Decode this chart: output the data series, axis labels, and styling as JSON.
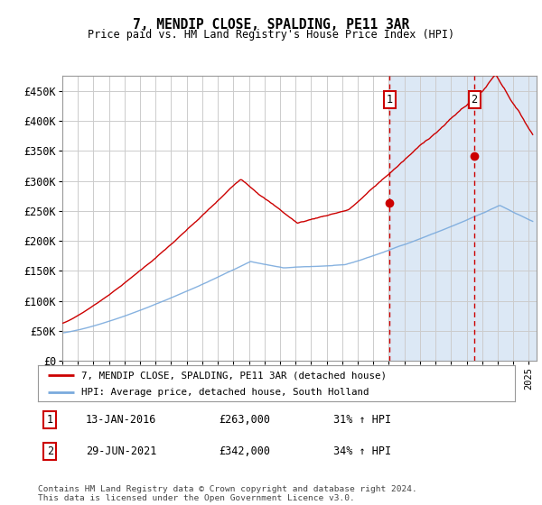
{
  "title": "7, MENDIP CLOSE, SPALDING, PE11 3AR",
  "subtitle": "Price paid vs. HM Land Registry's House Price Index (HPI)",
  "ylabel_ticks": [
    "£0",
    "£50K",
    "£100K",
    "£150K",
    "£200K",
    "£250K",
    "£300K",
    "£350K",
    "£400K",
    "£450K"
  ],
  "ytick_values": [
    0,
    50000,
    100000,
    150000,
    200000,
    250000,
    300000,
    350000,
    400000,
    450000
  ],
  "ylim": [
    0,
    475000
  ],
  "xlim_start": 1995.0,
  "xlim_end": 2025.5,
  "red_line_color": "#cc0000",
  "blue_line_color": "#7aaadd",
  "marker1_date": 2016.04,
  "marker1_value": 263000,
  "marker2_date": 2021.5,
  "marker2_value": 342000,
  "legend1": "7, MENDIP CLOSE, SPALDING, PE11 3AR (detached house)",
  "legend2": "HPI: Average price, detached house, South Holland",
  "annotation1_label": "1",
  "annotation1_date": "13-JAN-2016",
  "annotation1_price": "£263,000",
  "annotation1_hpi": "31% ↑ HPI",
  "annotation2_label": "2",
  "annotation2_date": "29-JUN-2021",
  "annotation2_price": "£342,000",
  "annotation2_hpi": "34% ↑ HPI",
  "footer": "Contains HM Land Registry data © Crown copyright and database right 2024.\nThis data is licensed under the Open Government Licence v3.0.",
  "shaded_start": 2016.04,
  "shaded_end": 2025.5,
  "shaded_color": "#dce8f5"
}
